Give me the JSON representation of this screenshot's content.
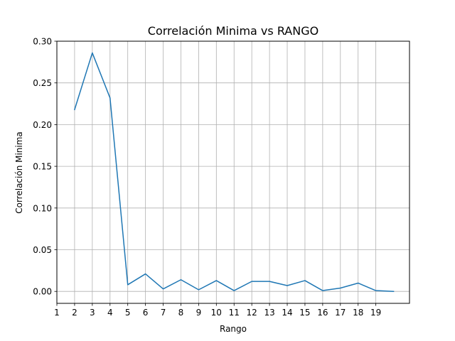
{
  "chart_data": {
    "type": "line",
    "title": "Correlación Minima vs RANGO",
    "xlabel": "Rango",
    "ylabel": "Correlación Minima",
    "xlim": [
      1,
      20.9
    ],
    "ylim": [
      -0.0143,
      0.3
    ],
    "x_ticks": [
      1,
      2,
      3,
      4,
      5,
      6,
      7,
      8,
      9,
      10,
      11,
      12,
      13,
      14,
      15,
      16,
      17,
      18,
      19
    ],
    "y_ticks": [
      0.0,
      0.05,
      0.1,
      0.15,
      0.2,
      0.25,
      0.3
    ],
    "y_tick_labels": [
      "0.00",
      "0.05",
      "0.10",
      "0.15",
      "0.20",
      "0.25",
      "0.30"
    ],
    "grid": true,
    "series": [
      {
        "color": "#1f77b4",
        "x": [
          2,
          3,
          4,
          5,
          6,
          7,
          8,
          9,
          10,
          11,
          12,
          13,
          14,
          15,
          16,
          17,
          18,
          19,
          20
        ],
        "values": [
          0.218,
          0.286,
          0.232,
          0.008,
          0.021,
          0.003,
          0.014,
          0.002,
          0.013,
          0.001,
          0.012,
          0.012,
          0.007,
          0.013,
          0.001,
          0.004,
          0.01,
          0.001,
          0.0
        ]
      }
    ]
  }
}
